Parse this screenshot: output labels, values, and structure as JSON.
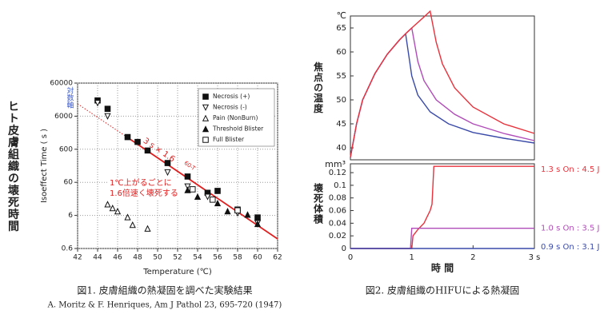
{
  "chart_data": [
    {
      "type": "scatter",
      "side_label": "ヒト皮膚組織の壊死時間",
      "y_label": "Isoeffect Time ( s )",
      "x_label": "Temperature (℃)",
      "y_note": "対数軸",
      "log_y": true,
      "grid": true,
      "xlim": [
        42,
        62
      ],
      "ylim": [
        0.6,
        60000
      ],
      "xticks": [
        42,
        44,
        46,
        48,
        50,
        52,
        54,
        56,
        58,
        60,
        62
      ],
      "yticks": [
        0.6,
        6,
        60,
        600,
        6000,
        60000
      ],
      "series": [
        {
          "name": "Necrosis (+)",
          "marker": "square-filled",
          "color": "#111111",
          "x": [
            44,
            45,
            47,
            48,
            49,
            51,
            53,
            55,
            56,
            58,
            60
          ],
          "values": [
            18000,
            10000,
            1400,
            1000,
            550,
            230,
            90,
            29,
            33,
            9,
            5.2
          ]
        },
        {
          "name": "Necrosis (-)",
          "marker": "triangle-down-open",
          "color": "#111111",
          "x": [
            44,
            45,
            51,
            53,
            55,
            58,
            60
          ],
          "values": [
            15000,
            6000,
            120,
            45,
            22,
            7,
            3.5
          ]
        },
        {
          "name": "Pain (NonBurn)",
          "marker": "triangle-up-open",
          "color": "#111111",
          "x": [
            45,
            45.5,
            46,
            47,
            47.5,
            49
          ],
          "values": [
            13,
            10,
            8,
            5.3,
            3.1,
            2.4
          ]
        },
        {
          "name": "Threshold Blister",
          "marker": "triangle-up-filled",
          "color": "#111111",
          "x": [
            53,
            54,
            56,
            57,
            59,
            60
          ],
          "values": [
            35,
            22,
            14,
            8,
            6.3,
            3.3
          ]
        },
        {
          "name": "Full Blister",
          "marker": "square-open",
          "color": "#111111",
          "x": [
            53.5,
            55.5,
            58
          ],
          "values": [
            37,
            18,
            8.5
          ]
        }
      ],
      "fit_line": {
        "color": "#e02020",
        "x": [
          42,
          47,
          62
        ],
        "values": [
          14168,
          1353,
          1.17
        ],
        "styles": [
          "dotted",
          "solid"
        ],
        "label": "3 s × 1.6",
        "label_exponent": "60-T"
      },
      "annotation": [
        "1℃上がるごとに",
        "1.6倍速く壊死する"
      ]
    },
    {
      "type": "line",
      "y_unit": "℃",
      "y_label": "焦点の温度",
      "xlim": [
        0,
        3
      ],
      "ylim": [
        37.5,
        67.5
      ],
      "yticks": [
        40,
        45,
        50,
        55,
        60,
        65
      ],
      "series": [
        {
          "color": "#3a4aa8",
          "x": [
            0,
            0.1,
            0.2,
            0.4,
            0.6,
            0.8,
            0.9,
            1.0,
            1.1,
            1.3,
            1.6,
            2.0,
            2.5,
            3.0
          ],
          "values": [
            38,
            45,
            50,
            55.5,
            59.5,
            62.5,
            63.8,
            55,
            51,
            47.5,
            45,
            43.2,
            42,
            41
          ]
        },
        {
          "color": "#b04cb8",
          "x": [
            0,
            0.1,
            0.2,
            0.4,
            0.6,
            0.8,
            0.9,
            1.0,
            1.1,
            1.2,
            1.4,
            1.7,
            2.0,
            2.5,
            3.0
          ],
          "values": [
            38,
            45,
            50,
            55.5,
            59.5,
            62.5,
            63.8,
            65,
            58,
            54,
            50,
            47,
            45,
            43,
            41.5
          ]
        },
        {
          "color": "#e8323c",
          "x": [
            0,
            0.1,
            0.2,
            0.4,
            0.6,
            0.8,
            0.9,
            1.0,
            1.2,
            1.3,
            1.4,
            1.5,
            1.7,
            2.0,
            2.5,
            3.0
          ],
          "values": [
            38,
            45,
            50,
            55.5,
            59.5,
            62.5,
            63.8,
            65,
            67.3,
            68.5,
            62,
            57.5,
            52.5,
            48.5,
            45,
            43
          ]
        }
      ]
    },
    {
      "type": "line",
      "y_unit": "mm³",
      "y_label": "壊死体積",
      "x_label": "時 間",
      "xlim": [
        0,
        3
      ],
      "ylim": [
        0,
        0.134
      ],
      "yticks": [
        0,
        0.02,
        0.04,
        0.06,
        0.08,
        0.1,
        0.12
      ],
      "xticks": [
        0,
        1,
        2,
        {
          "value": 3,
          "label": "3 s"
        }
      ],
      "series": [
        {
          "name": "1.3 s On : 4.5 J",
          "color": "#e8323c",
          "x": [
            0,
            1.0,
            1.02,
            1.1,
            1.15,
            1.2,
            1.25,
            1.3,
            1.33,
            1.36,
            3.0
          ],
          "values": [
            0,
            0,
            0.02,
            0.03,
            0.035,
            0.04,
            0.05,
            0.06,
            0.07,
            0.13,
            0.13
          ]
        },
        {
          "name": "1.0 s On : 3.5 J",
          "color": "#b04cb8",
          "x": [
            0,
            0.98,
            1.0,
            3.0
          ],
          "values": [
            0,
            0,
            0.032,
            0.032
          ]
        },
        {
          "name": "0.9 s On : 3.1 J",
          "color": "#3a4aa8",
          "x": [
            0,
            3.0
          ],
          "values": [
            0,
            0
          ]
        }
      ]
    }
  ],
  "captions": {
    "figure1": "図1. 皮膚組織の熱凝固を調べた実験結果",
    "figure1_source": "A. Moritz & F. Henriques, Am J Pathol 23, 695-720 (1947)",
    "figure2": "図2. 皮膚組織のHIFUによる熱凝固"
  }
}
